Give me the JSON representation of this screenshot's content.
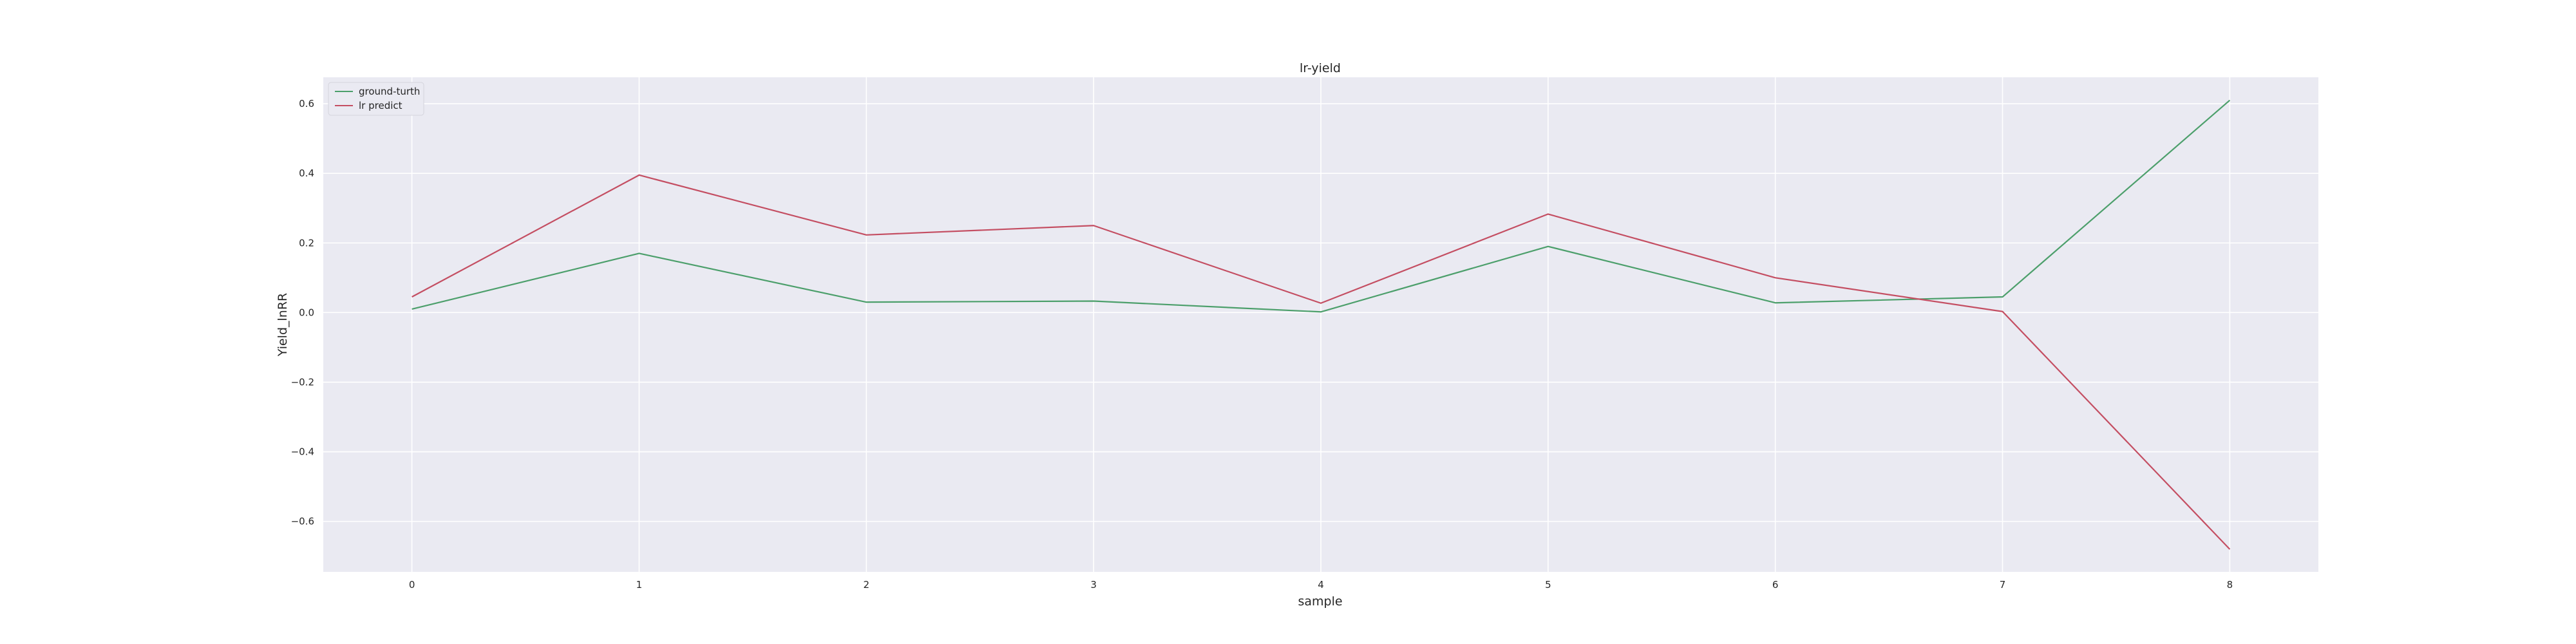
{
  "chart_data": {
    "type": "line",
    "title": "lr-yield",
    "xlabel": "sample",
    "ylabel": "Yield_lnRR",
    "x": [
      0,
      1,
      2,
      3,
      4,
      5,
      6,
      7,
      8
    ],
    "xticks": [
      "0",
      "1",
      "2",
      "3",
      "4",
      "5",
      "6",
      "7",
      "8"
    ],
    "yticks": [
      "−0.6",
      "−0.4",
      "−0.2",
      "0.0",
      "0.2",
      "0.4",
      "0.6"
    ],
    "ytick_values": [
      -0.6,
      -0.4,
      -0.2,
      0.0,
      0.2,
      0.4,
      0.6
    ],
    "xlim": [
      -0.39,
      8.39
    ],
    "ylim": [
      -0.745,
      0.676
    ],
    "grid": true,
    "legend": "top-left",
    "series": [
      {
        "name": "ground-turth",
        "color": "#4c9f6b",
        "values": [
          0.01,
          0.17,
          0.03,
          0.033,
          0.002,
          0.19,
          0.028,
          0.045,
          0.61
        ]
      },
      {
        "name": "lr predict",
        "color": "#c44e62",
        "values": [
          0.045,
          0.395,
          0.223,
          0.25,
          0.027,
          0.283,
          0.1,
          0.003,
          -0.68
        ]
      }
    ]
  }
}
